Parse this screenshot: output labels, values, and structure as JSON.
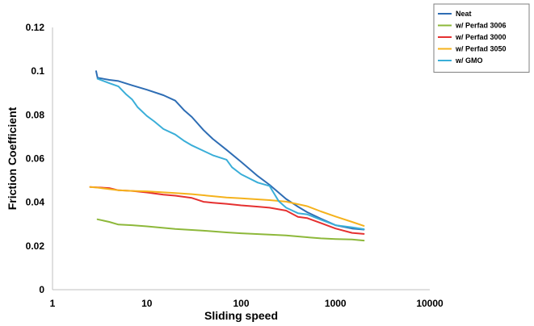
{
  "chart_data": {
    "type": "line",
    "title": "",
    "xlabel": "Sliding speed",
    "ylabel": "Friction Coefficient",
    "x_scale": "log",
    "xlim": [
      1,
      10000
    ],
    "ylim": [
      0,
      0.12
    ],
    "x_ticks": [
      "1",
      "10",
      "100",
      "1000",
      "10000"
    ],
    "y_ticks": [
      "0",
      "0.02",
      "0.04",
      "0.06",
      "0.08",
      "0.1",
      "0.12"
    ],
    "grid": false,
    "legend_position": "top-right",
    "series": [
      {
        "name": "Neat",
        "color": "#2E6DB4",
        "points": [
          [
            2.9,
            0.1
          ],
          [
            3,
            0.097
          ],
          [
            4,
            0.096
          ],
          [
            5,
            0.0955
          ],
          [
            7,
            0.0935
          ],
          [
            10,
            0.0915
          ],
          [
            15,
            0.089
          ],
          [
            20,
            0.0865
          ],
          [
            25,
            0.082
          ],
          [
            30,
            0.079
          ],
          [
            40,
            0.073
          ],
          [
            50,
            0.069
          ],
          [
            70,
            0.064
          ],
          [
            100,
            0.0585
          ],
          [
            150,
            0.052
          ],
          [
            200,
            0.048
          ],
          [
            300,
            0.0415
          ],
          [
            400,
            0.038
          ],
          [
            500,
            0.0355
          ],
          [
            700,
            0.0325
          ],
          [
            1000,
            0.0295
          ],
          [
            1500,
            0.028
          ],
          [
            2000,
            0.0275
          ]
        ]
      },
      {
        "name": "w/ Perfad 3006",
        "color": "#8DB83A",
        "points": [
          [
            3,
            0.0322
          ],
          [
            4,
            0.031
          ],
          [
            5,
            0.0298
          ],
          [
            7,
            0.0295
          ],
          [
            10,
            0.029
          ],
          [
            20,
            0.0278
          ],
          [
            40,
            0.027
          ],
          [
            70,
            0.0262
          ],
          [
            100,
            0.0258
          ],
          [
            200,
            0.0252
          ],
          [
            300,
            0.0248
          ],
          [
            500,
            0.024
          ],
          [
            700,
            0.0235
          ],
          [
            1000,
            0.0232
          ],
          [
            1500,
            0.023
          ],
          [
            2000,
            0.0225
          ]
        ]
      },
      {
        "name": "w/ Perfad 3000",
        "color": "#E53030",
        "points": [
          [
            2.5,
            0.047
          ],
          [
            4,
            0.0465
          ],
          [
            5,
            0.0455
          ],
          [
            7,
            0.0452
          ],
          [
            10,
            0.0445
          ],
          [
            15,
            0.0435
          ],
          [
            20,
            0.043
          ],
          [
            30,
            0.042
          ],
          [
            40,
            0.0402
          ],
          [
            50,
            0.0398
          ],
          [
            70,
            0.0393
          ],
          [
            100,
            0.0386
          ],
          [
            150,
            0.038
          ],
          [
            200,
            0.0375
          ],
          [
            300,
            0.0362
          ],
          [
            400,
            0.0333
          ],
          [
            500,
            0.0328
          ],
          [
            700,
            0.0305
          ],
          [
            1000,
            0.028
          ],
          [
            1500,
            0.026
          ],
          [
            2000,
            0.0255
          ]
        ]
      },
      {
        "name": "w/ Perfad 3050",
        "color": "#F5B21C",
        "points": [
          [
            2.5,
            0.047
          ],
          [
            3,
            0.0467
          ],
          [
            4,
            0.046
          ],
          [
            5,
            0.0455
          ],
          [
            7,
            0.0452
          ],
          [
            10,
            0.045
          ],
          [
            20,
            0.0442
          ],
          [
            30,
            0.0437
          ],
          [
            50,
            0.0428
          ],
          [
            70,
            0.0422
          ],
          [
            100,
            0.0418
          ],
          [
            200,
            0.041
          ],
          [
            300,
            0.0403
          ],
          [
            500,
            0.0382
          ],
          [
            700,
            0.0358
          ],
          [
            1000,
            0.0335
          ],
          [
            1500,
            0.031
          ],
          [
            2000,
            0.0292
          ]
        ]
      },
      {
        "name": "w/ GMO",
        "color": "#3AAED8",
        "points": [
          [
            3,
            0.0965
          ],
          [
            4,
            0.0945
          ],
          [
            5,
            0.093
          ],
          [
            6,
            0.0895
          ],
          [
            7,
            0.087
          ],
          [
            8,
            0.0835
          ],
          [
            10,
            0.0795
          ],
          [
            12,
            0.077
          ],
          [
            15,
            0.0735
          ],
          [
            20,
            0.071
          ],
          [
            25,
            0.068
          ],
          [
            30,
            0.066
          ],
          [
            40,
            0.0635
          ],
          [
            50,
            0.0615
          ],
          [
            70,
            0.0595
          ],
          [
            80,
            0.056
          ],
          [
            100,
            0.0528
          ],
          [
            150,
            0.049
          ],
          [
            200,
            0.0475
          ],
          [
            250,
            0.0405
          ],
          [
            300,
            0.0375
          ],
          [
            400,
            0.035
          ],
          [
            500,
            0.0345
          ],
          [
            700,
            0.032
          ],
          [
            1000,
            0.0295
          ],
          [
            1500,
            0.0285
          ],
          [
            2000,
            0.0277
          ]
        ]
      }
    ]
  }
}
